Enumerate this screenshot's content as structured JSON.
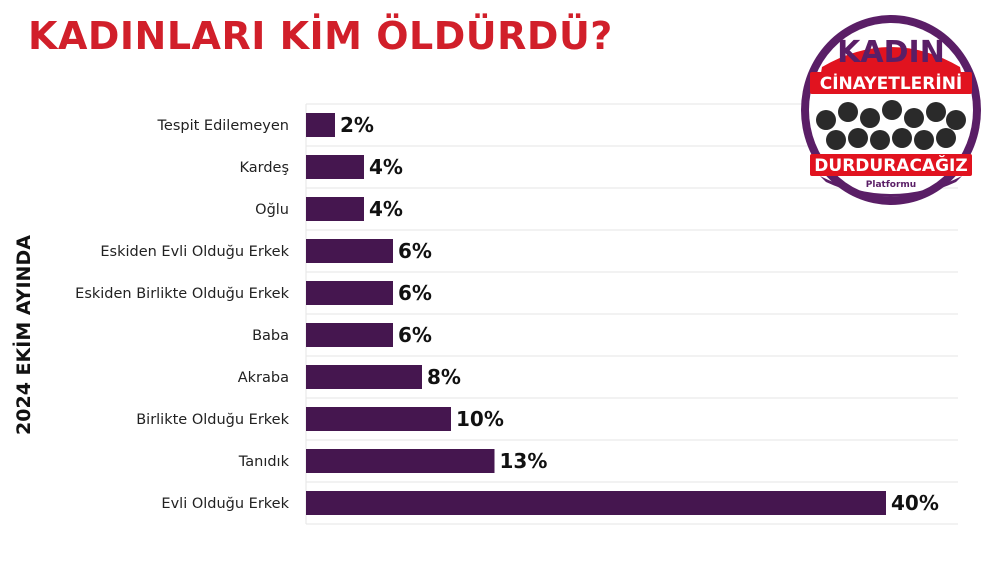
{
  "header": {
    "title": "KADINLARI KİM ÖLDÜRDÜ?",
    "side_label": "2024 EKİM AYINDA"
  },
  "logo": {
    "line1": "KADIN",
    "line2": "CİNAYETLERİNİ",
    "line3": "DURDURACAĞIZ",
    "line4": "Platformu"
  },
  "colors": {
    "title": "#d11f2a",
    "bar": "#45164f",
    "logo_purple": "#5a1e66",
    "logo_ring": "#e1131f",
    "grid": "#e6e6e6"
  },
  "chart_data": {
    "type": "bar",
    "orientation": "horizontal",
    "categories": [
      "Tespit Edilemeyen",
      "Kardeş",
      "Oğlu",
      "Eskiden Evli Olduğu Erkek",
      "Eskiden Birlikte Olduğu Erkek",
      "Baba",
      "Akraba",
      "Birlikte Olduğu Erkek",
      "Tanıdık",
      "Evli Olduğu Erkek"
    ],
    "values": [
      2,
      4,
      4,
      6,
      6,
      6,
      8,
      10,
      13,
      40
    ],
    "value_labels": [
      "2%",
      "4%",
      "4%",
      "6%",
      "6%",
      "6%",
      "8%",
      "10%",
      "13%",
      "40%"
    ],
    "title": "KADINLARI KİM ÖLDÜRDÜ?",
    "xlabel": "",
    "ylabel": "2024 EKİM AYINDA",
    "xlim": [
      0,
      44
    ],
    "grid": true,
    "legend": "none"
  }
}
